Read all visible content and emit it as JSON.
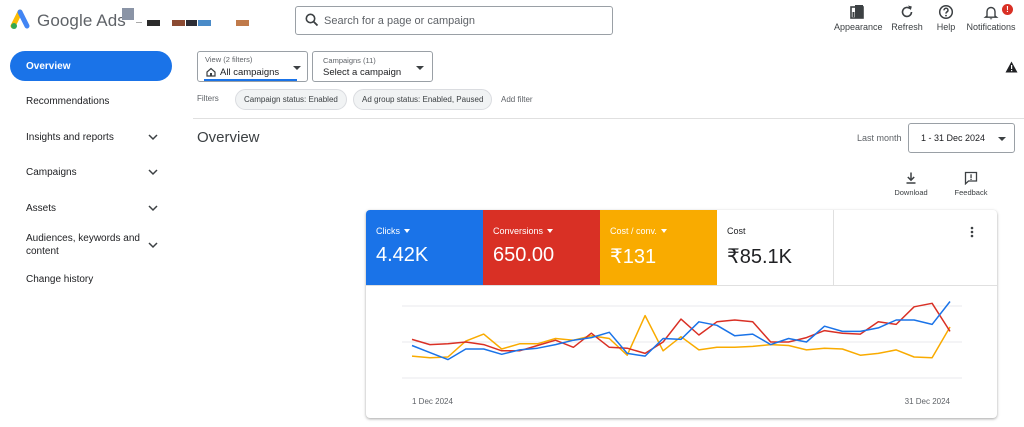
{
  "header": {
    "app_name": "Google Ads",
    "search_placeholder": "Search for a page or campaign",
    "tools": [
      {
        "label": "Appearance",
        "icon": "appearance-icon"
      },
      {
        "label": "Refresh",
        "icon": "refresh-icon"
      },
      {
        "label": "Help",
        "icon": "help-icon"
      },
      {
        "label": "Notifications",
        "icon": "bell-icon",
        "badge": "!"
      }
    ]
  },
  "sidebar": {
    "items": [
      {
        "label": "Overview",
        "active": true
      },
      {
        "label": "Recommendations"
      },
      {
        "label": "Insights and reports",
        "expandable": true
      },
      {
        "label": "Campaigns",
        "expandable": true
      },
      {
        "label": "Assets",
        "expandable": true
      },
      {
        "label": "Audiences, keywords and content",
        "expandable": true
      },
      {
        "label": "Change history"
      }
    ]
  },
  "filters": {
    "view_caption": "View (2 filters)",
    "view_value": "All campaigns",
    "campaign_caption": "Campaigns (11)",
    "campaign_value": "Select a campaign",
    "label": "Filters",
    "chips": [
      "Campaign status: Enabled",
      "Ad group status: Enabled, Paused"
    ],
    "add_filter": "Add filter"
  },
  "overview": {
    "title": "Overview",
    "period_label": "Last month",
    "date_range": "1 - 31 Dec 2024",
    "download": "Download",
    "feedback": "Feedback"
  },
  "metrics": [
    {
      "name": "Clicks",
      "value": "4.42K",
      "color": "#1a73e8",
      "dropdown": true
    },
    {
      "name": "Conversions",
      "value": "650.00",
      "color": "#d93025",
      "dropdown": true
    },
    {
      "name": "Cost / conv.",
      "value": "₹131",
      "color": "#f9ab00",
      "dropdown": true
    },
    {
      "name": "Cost",
      "value": "₹85.1K",
      "color": "#ffffff",
      "dropdown": false
    }
  ],
  "chart_data": {
    "type": "line",
    "x_start_label": "1 Dec 2024",
    "x_end_label": "31 Dec 2024",
    "y_scale": "relative (no axis values shown)",
    "x": [
      1,
      2,
      3,
      4,
      5,
      6,
      7,
      8,
      9,
      10,
      11,
      12,
      13,
      14,
      15,
      16,
      17,
      18,
      19,
      20,
      21,
      22,
      23,
      24,
      25,
      26,
      27,
      28,
      29,
      30,
      31
    ],
    "series": [
      {
        "name": "Clicks",
        "color": "#1a73e8",
        "values": [
          46,
          38,
          30,
          42,
          42,
          36,
          41,
          43,
          47,
          52,
          55,
          61,
          37,
          34,
          54,
          53,
          73,
          69,
          57,
          59,
          47,
          54,
          50,
          68,
          62,
          62,
          66,
          75,
          75,
          70,
          96
        ]
      },
      {
        "name": "Conversions",
        "color": "#d93025",
        "values": [
          53,
          47,
          48,
          50,
          47,
          40,
          40,
          46,
          52,
          44,
          60,
          44,
          43,
          37,
          50,
          76,
          58,
          73,
          75,
          73,
          50,
          50,
          55,
          63,
          60,
          59,
          73,
          70,
          90,
          94,
          62
        ]
      },
      {
        "name": "Cost / conv.",
        "color": "#f9ab00",
        "values": [
          34,
          32,
          33,
          51,
          59,
          42,
          48,
          48,
          54,
          52,
          57,
          54,
          35,
          80,
          40,
          56,
          41,
          44,
          44,
          45,
          47,
          46,
          41,
          43,
          42,
          35,
          37,
          41,
          33,
          32,
          67
        ]
      }
    ]
  }
}
